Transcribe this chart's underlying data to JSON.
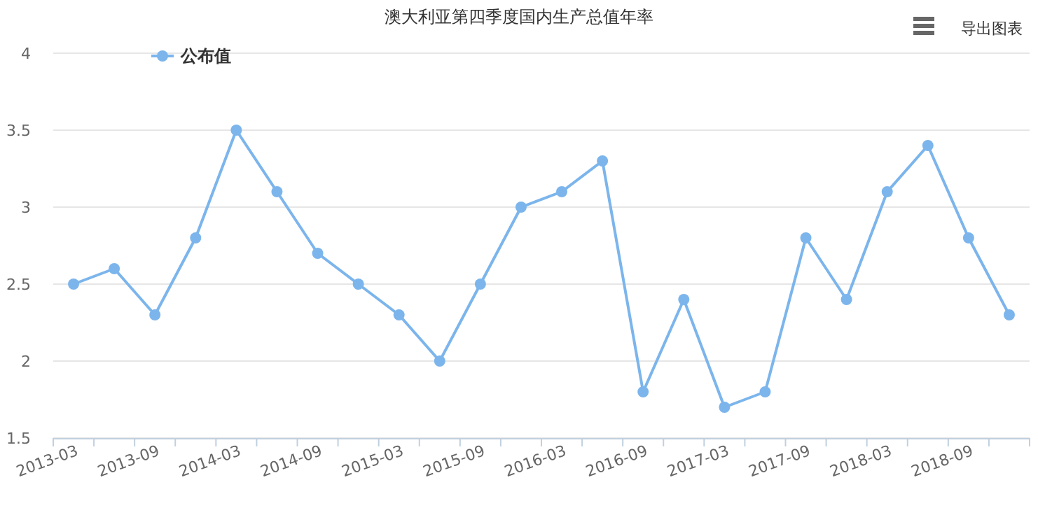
{
  "chart_data": {
    "type": "line",
    "title": "澳大利亚第四季度国内生产总值年率",
    "categories": [
      "2013-03",
      null,
      "2013-09",
      null,
      "2014-03",
      null,
      "2014-09",
      null,
      "2015-03",
      null,
      "2015-09",
      null,
      "2016-03",
      null,
      "2016-09",
      null,
      "2017-03",
      null,
      "2017-09",
      null,
      "2018-03",
      null,
      "2018-09",
      null
    ],
    "series": [
      {
        "name": "公布值",
        "color": "#7cb5ec",
        "values": [
          2.5,
          2.6,
          2.3,
          2.8,
          3.5,
          3.1,
          2.7,
          2.5,
          2.3,
          2.0,
          2.5,
          3.0,
          3.1,
          3.3,
          1.8,
          2.4,
          1.7,
          1.8,
          2.8,
          2.4,
          3.1,
          3.4,
          2.8,
          2.3
        ]
      }
    ],
    "ylim": [
      1.5,
      4
    ],
    "yticks": [
      1.5,
      2,
      2.5,
      3,
      3.5,
      4
    ],
    "grid": "y",
    "legend": "top left",
    "marker": "circle",
    "line_style": "solid",
    "annotations": [
      "导出图表"
    ]
  }
}
